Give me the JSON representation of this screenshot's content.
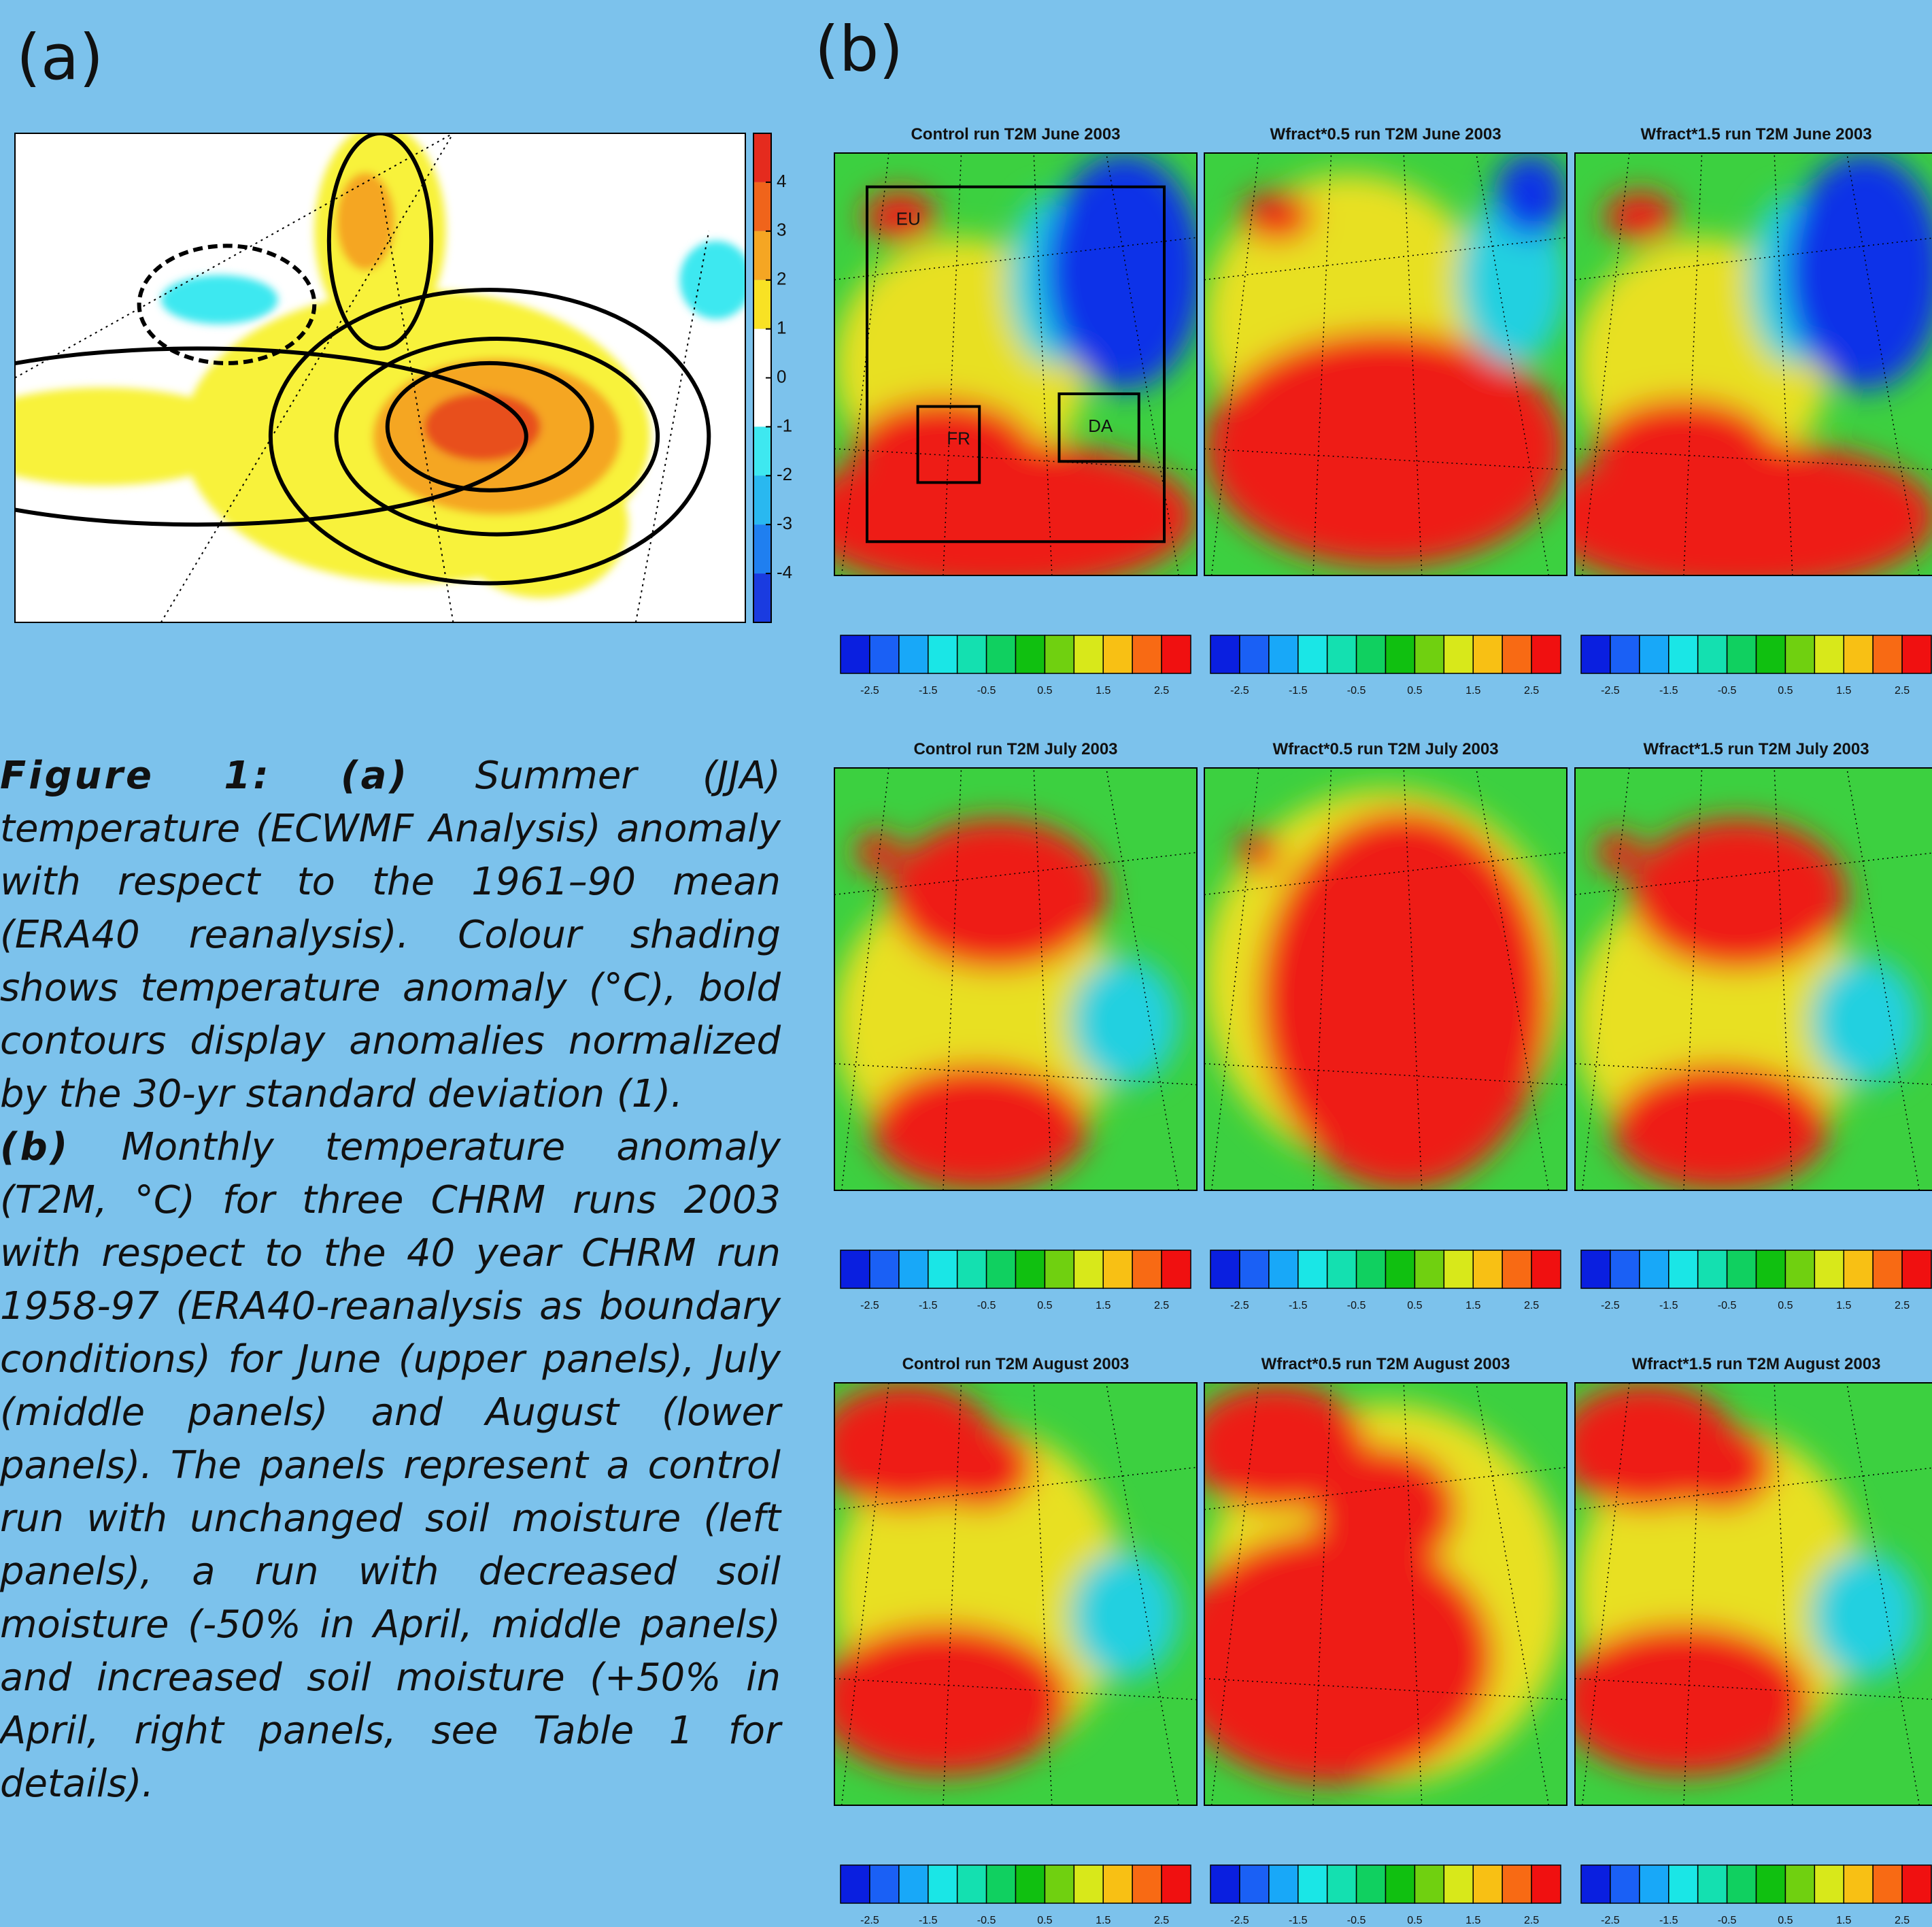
{
  "panel_a": {
    "label": "(a)",
    "colorbar_ticks": [
      4,
      3,
      2,
      1,
      0,
      -1,
      -2,
      -3,
      -4
    ]
  },
  "panel_b": {
    "label": "(b)",
    "titles": [
      [
        "Control run T2M June 2003",
        "Wfract*0.5 run T2M June 2003",
        "Wfract*1.5 run T2M June 2003"
      ],
      [
        "Control run T2M July 2003",
        "Wfract*0.5 run T2M July 2003",
        "Wfract*1.5 run T2M July 2003"
      ],
      [
        "Control run T2M August 2003",
        "Wfract*0.5 run T2M August 2003",
        "Wfract*1.5 run T2M August 2003"
      ]
    ],
    "boxes": [
      "EU",
      "FR",
      "DA"
    ],
    "colorbar_ticks": [
      -2.5,
      -1.5,
      -0.5,
      0.5,
      1.5,
      2.5
    ]
  },
  "caption": {
    "a_label": "Figure 1: (a)",
    "a_text": "Summer (JJA) temperature (ECWMF Analysis) anomaly with respect to the 1961–90 mean (ERA40 reanalysis). Colour shading shows temperature anomaly (°C), bold contours display anomalies normalized by the 30-yr standard deviation (1).",
    "b_label": "(b)",
    "b_text": "Monthly temperature anomaly (T2M, °C) for three CHRM runs 2003 with respect to the 40 year CHRM run 1958-97 (ERA40-reanalysis as boundary conditions) for June (upper panels), July (middle panels) and August (lower panels). The panels represent a control run with unchanged soil moisture (left panels), a run with decreased soil moisture (-50% in April, middle panels) and increased soil moisture (+50% in April, right panels, see Table 1 for details)."
  }
}
